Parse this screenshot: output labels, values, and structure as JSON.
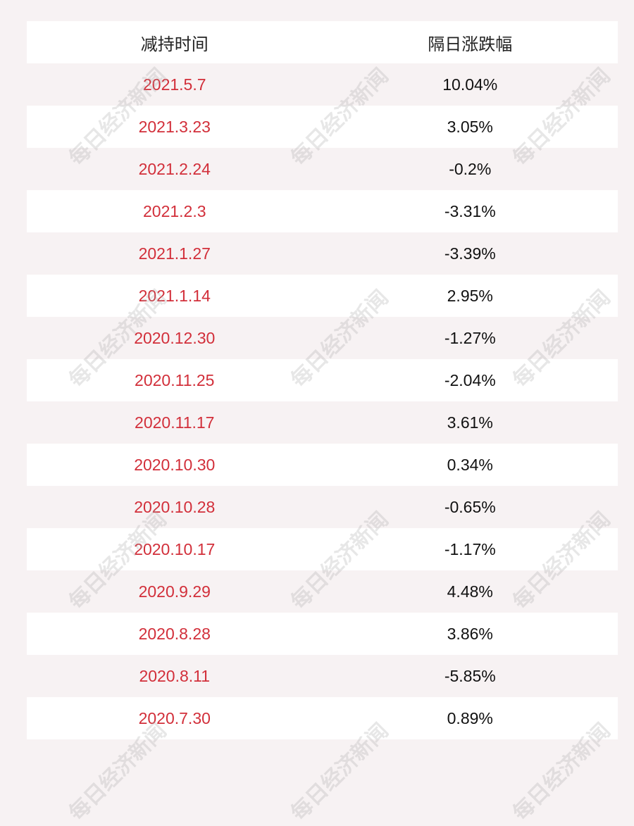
{
  "table": {
    "header": [
      "减持时间",
      "隔日涨跌幅"
    ],
    "rows": [
      [
        "2021.5.7",
        "10.04%"
      ],
      [
        "2021.3.23",
        "3.05%"
      ],
      [
        "2021.2.24",
        "-0.2%"
      ],
      [
        "2021.2.3",
        "-3.31%"
      ],
      [
        "2021.1.27",
        "-3.39%"
      ],
      [
        "2021.1.14",
        "2.95%"
      ],
      [
        "2020.12.30",
        "-1.27%"
      ],
      [
        "2020.11.25",
        "-2.04%"
      ],
      [
        "2020.11.17",
        "3.61%"
      ],
      [
        "2020.10.30",
        "0.34%"
      ],
      [
        "2020.10.28",
        "-0.65%"
      ],
      [
        "2020.10.17",
        "-1.17%"
      ],
      [
        "2020.9.29",
        "4.48%"
      ],
      [
        "2020.8.28",
        "3.86%"
      ],
      [
        "2020.8.11",
        "-5.85%"
      ],
      [
        "2020.7.30",
        "0.89%"
      ]
    ]
  },
  "watermark": "每日经济新闻"
}
